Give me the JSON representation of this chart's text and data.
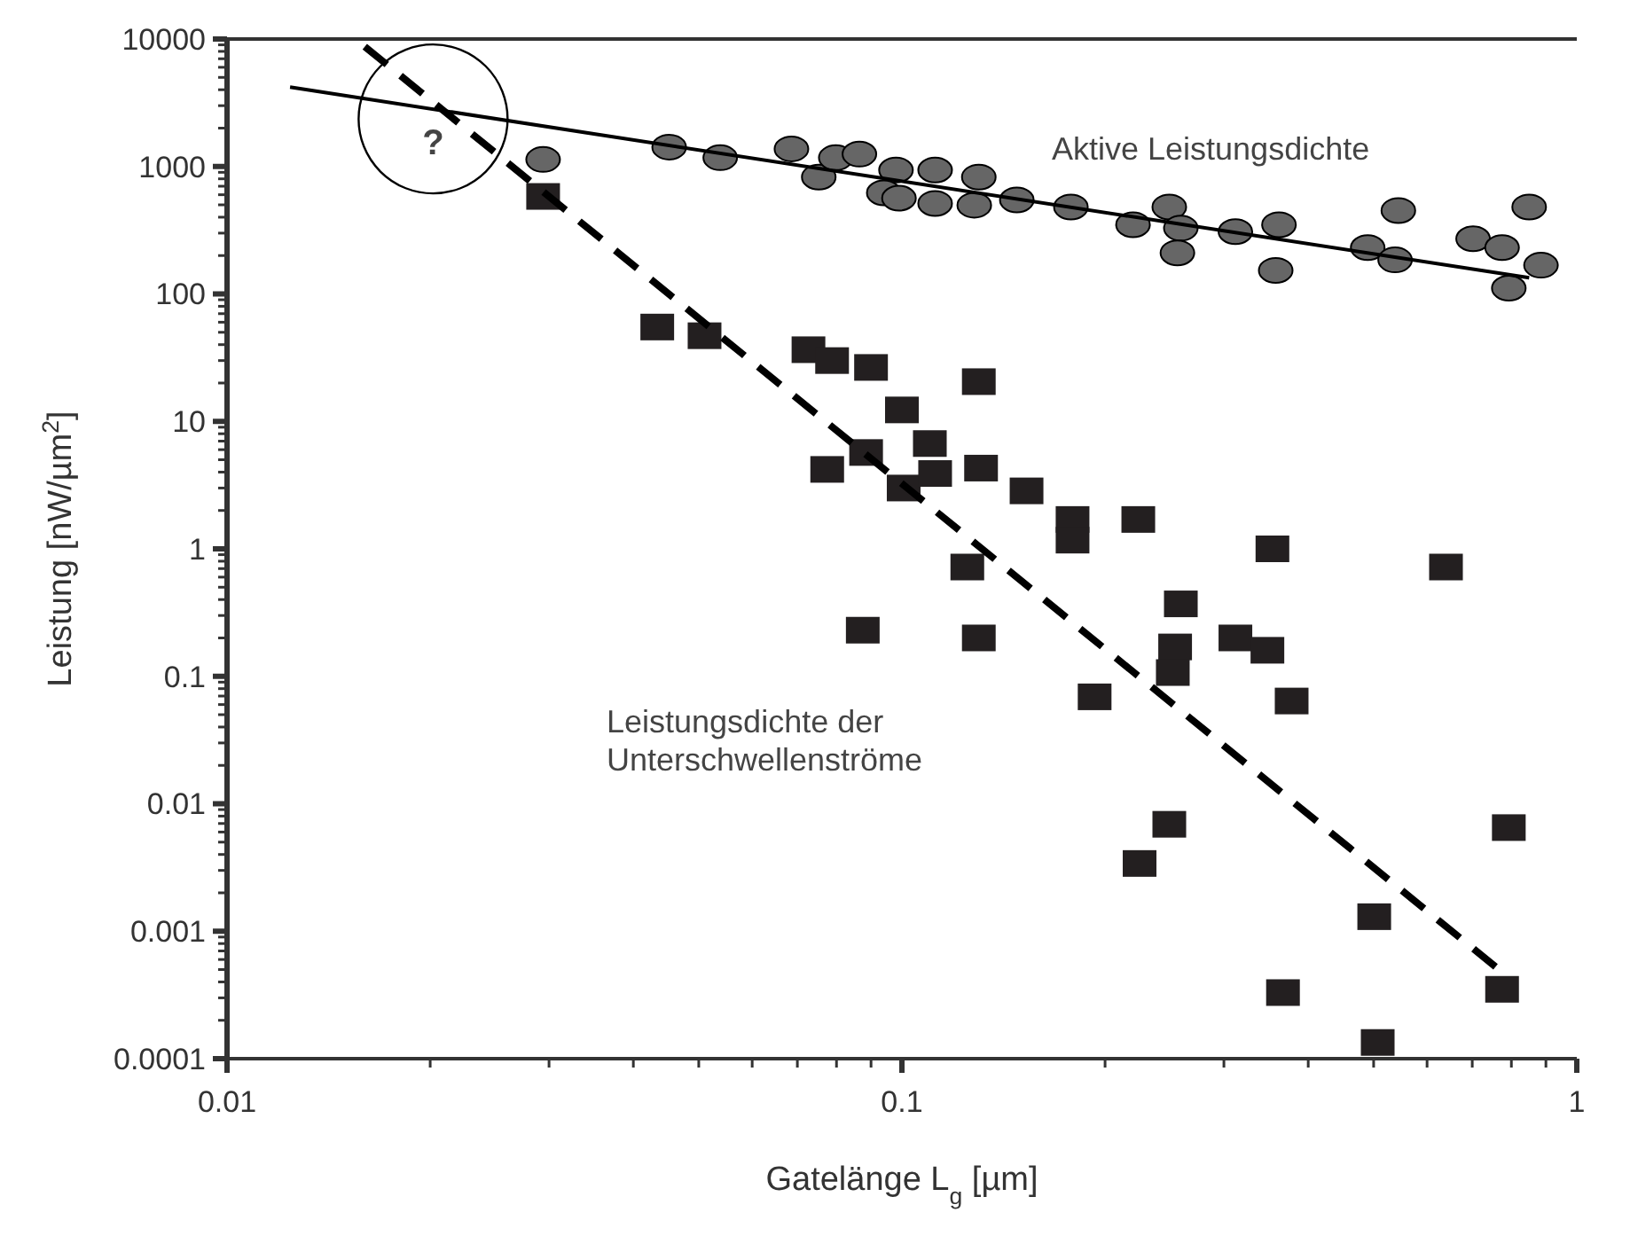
{
  "chart_data": {
    "type": "scatter",
    "xlabel": "Gatelänge L$_{g}$  [µm]",
    "ylabel": "Leistung  [nW/µm$^{2}$]",
    "log": "xy",
    "xlim": [
      0.01,
      1
    ],
    "xticks": [
      0.01,
      0.1,
      1
    ],
    "ylim": [
      0.0001,
      10000
    ],
    "yticks": [
      0.0001,
      0.001,
      0.01,
      0.1,
      1,
      10,
      100,
      1000,
      10000
    ],
    "grid": false,
    "annotations": [
      {
        "text": "?",
        "x": 0.0202,
        "y": 2360
      }
    ],
    "series": [
      {
        "name": "Aktive Leistungsdichte",
        "marker": "circle",
        "color": "#666666",
        "x": [
          0.0294,
          0.0452,
          0.0538,
          0.0686,
          0.0753,
          0.0798,
          0.0865,
          0.098,
          0.094,
          0.099,
          0.112,
          0.112,
          0.13,
          0.128,
          0.148,
          0.178,
          0.22,
          0.249,
          0.259,
          0.256,
          0.312,
          0.362,
          0.358,
          0.49,
          0.544,
          0.538,
          0.702,
          0.775,
          0.85,
          0.793,
          0.885
        ],
        "values": [
          1135,
          1419,
          1172,
          1374,
          826,
          1172,
          1250,
          938,
          621,
          564,
          938,
          513,
          826,
          497,
          546,
          481,
          349,
          481,
          328,
          210,
          308,
          349,
          153,
          231,
          451,
          185,
          271,
          231,
          481,
          111,
          168
        ]
      },
      {
        "name": "Leistungsdichte der Unterschwellenströme",
        "marker": "square",
        "color": "#231f20",
        "x": [
          0.0294,
          0.0434,
          0.051,
          0.0727,
          0.0788,
          0.09,
          0.1,
          0.0775,
          0.0885,
          0.1006,
          0.11,
          0.112,
          0.13,
          0.131,
          0.153,
          0.179,
          0.179,
          0.224,
          0.354,
          0.64,
          0.125,
          0.0875,
          0.13,
          0.259,
          0.254,
          0.252,
          0.193,
          0.312,
          0.348,
          0.378,
          0.249,
          0.225,
          0.793,
          0.501,
          0.367,
          0.775,
          0.507
        ],
        "values": [
          582,
          55,
          47,
          36.5,
          30,
          26.5,
          12.3,
          4.2,
          5.7,
          3.0,
          6.7,
          3.9,
          20.5,
          4.3,
          2.85,
          1.7,
          1.17,
          1.7,
          1.0,
          0.72,
          0.72,
          0.23,
          0.2,
          0.37,
          0.17,
          0.107,
          0.069,
          0.2,
          0.16,
          0.064,
          0.0069,
          0.0034,
          0.0065,
          0.0013,
          0.00033,
          0.00035,
          0.000134
        ]
      },
      {
        "type": "line",
        "marker": "none",
        "line_style": "solid",
        "color": "#000000",
        "x": [
          0.0124,
          0.85
        ],
        "values": [
          4190,
          134
        ]
      },
      {
        "type": "line",
        "marker": "none",
        "line_style": "dashed",
        "color": "#000000",
        "x": [
          0.016,
          0.782
        ],
        "values": [
          8720,
          0.00046
        ]
      }
    ]
  }
}
